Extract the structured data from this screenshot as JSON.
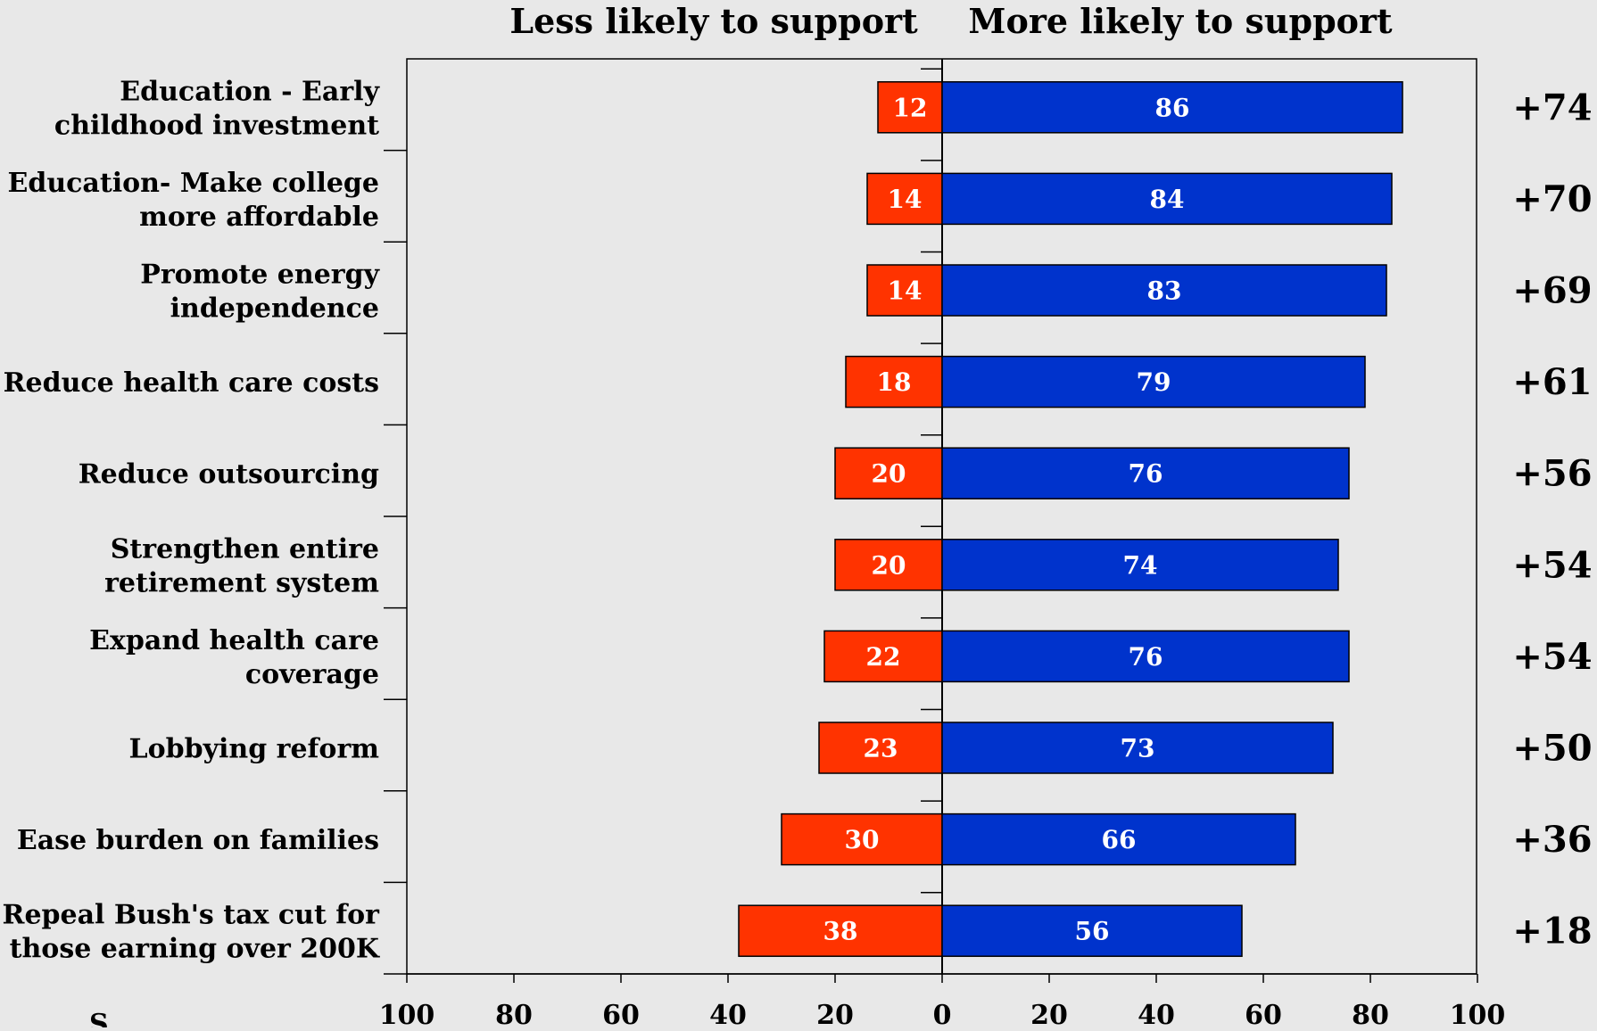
{
  "chart_data": {
    "type": "bar",
    "orientation": "horizontal-diverging",
    "header_left": "Less likely to support",
    "header_right": "More likely to support",
    "categories": [
      [
        "Education - Early",
        "childhood investment"
      ],
      [
        "Education- Make college",
        "more affordable"
      ],
      [
        "Promote energy",
        "independence"
      ],
      [
        "Reduce health care costs"
      ],
      [
        "Reduce outsourcing"
      ],
      [
        "Strengthen entire",
        "retirement system"
      ],
      [
        "Expand health care",
        "coverage"
      ],
      [
        "Lobbying reform"
      ],
      [
        "Ease burden on families"
      ],
      [
        "Repeal Bush's tax cut for",
        "those earning over 200K"
      ]
    ],
    "series": [
      {
        "values": [
          12,
          14,
          14,
          18,
          20,
          20,
          22,
          23,
          30,
          38
        ],
        "color": "#ff3300"
      },
      {
        "values": [
          86,
          84,
          83,
          79,
          76,
          74,
          76,
          73,
          66,
          56
        ],
        "color": "#0033cc"
      }
    ],
    "net_labels": [
      "+74",
      "+70",
      "+69",
      "+61",
      "+56",
      "+54",
      "+54",
      "+50",
      "+36",
      "+18"
    ],
    "x_tick_labels": [
      "100",
      "80",
      "60",
      "40",
      "20",
      "0",
      "20",
      "40",
      "60",
      "80",
      "100"
    ],
    "xlim": [
      -100,
      100
    ],
    "bottom_left_fragment": "S",
    "grid": false,
    "legend": "none"
  }
}
